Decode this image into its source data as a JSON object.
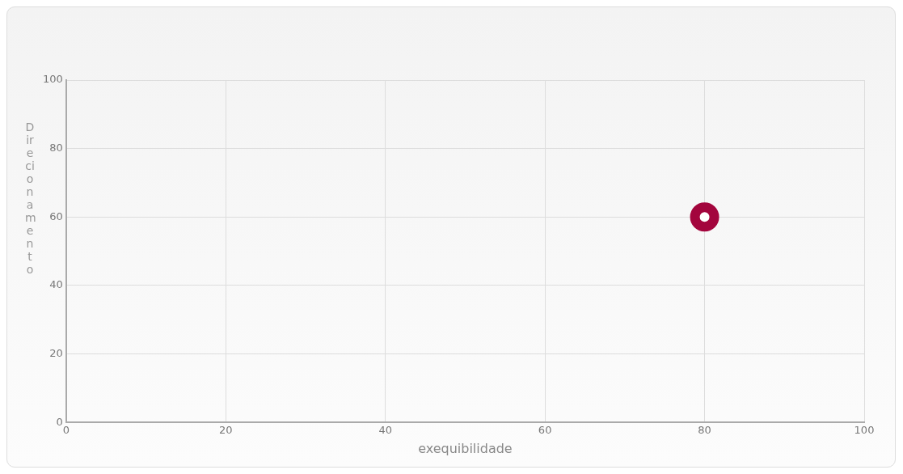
{
  "chart_data": {
    "type": "scatter",
    "xlabel": "exequibilidade",
    "ylabel": "Direcionamento",
    "series": [
      {
        "color": "#a3053d",
        "x": [
          80
        ],
        "values": [
          60
        ]
      }
    ],
    "xlim": [
      0,
      100
    ],
    "xticks": [
      0,
      20,
      40,
      60,
      80,
      100
    ],
    "ylim": [
      0,
      100
    ],
    "yticks": [
      0,
      20,
      40,
      60,
      80,
      100
    ],
    "grid": true,
    "marker": "circle"
  }
}
